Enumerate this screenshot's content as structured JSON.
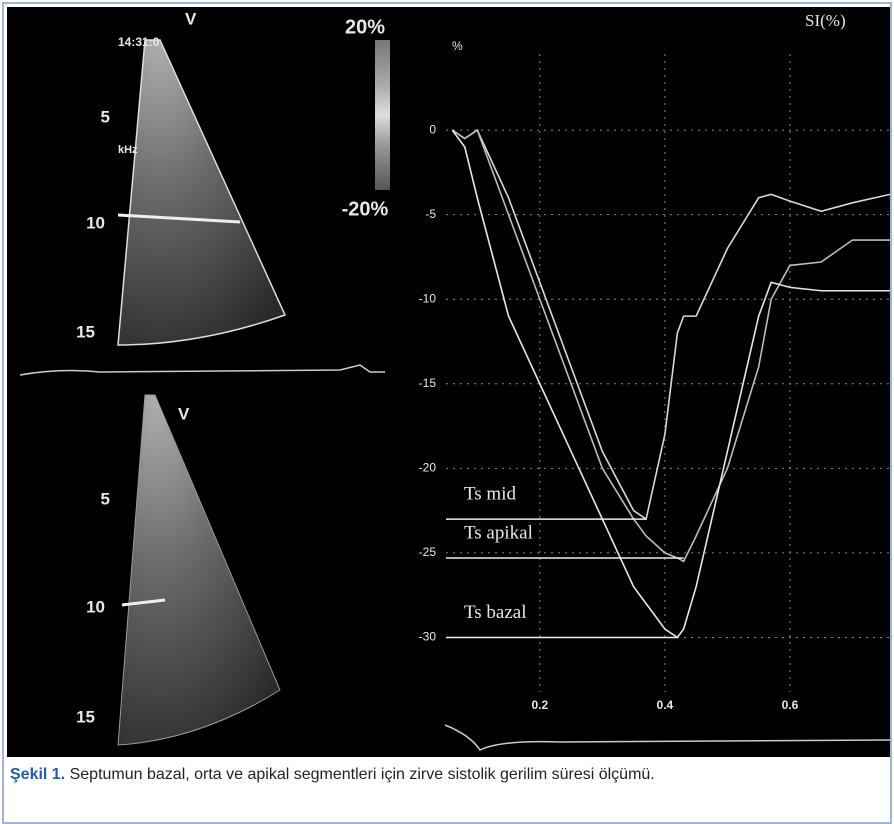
{
  "image": {
    "top_panel": {
      "time": "14:31:0",
      "unit": "kHz",
      "view": "V",
      "depth_labels": [
        "5",
        "10",
        "15"
      ],
      "scale_top": "20%",
      "scale_bottom": "-20%"
    },
    "bottom_panel": {
      "view": "V",
      "depth_labels": [
        "5",
        "10",
        "15"
      ]
    }
  },
  "chart_data": {
    "type": "line",
    "title": "SI(%)",
    "y_label": "%",
    "x": [
      0.06,
      0.08,
      0.1,
      0.15,
      0.2,
      0.25,
      0.3,
      0.35,
      0.37,
      0.4,
      0.42,
      0.43,
      0.45,
      0.5,
      0.55,
      0.57,
      0.6,
      0.65,
      0.7,
      0.76
    ],
    "series": [
      {
        "color": "#d8d8d8",
        "values": [
          0,
          -0.5,
          0,
          -4,
          -9,
          -14,
          -19,
          -22.5,
          -23,
          -18,
          -12,
          -11,
          -11,
          -7,
          -4,
          -3.8,
          -4.2,
          -4.8,
          -4.3,
          -3.8
        ]
      },
      {
        "color": "#bcbcbc",
        "values": [
          0,
          -0.5,
          0,
          -5,
          -10,
          -15,
          -20,
          -23,
          -24,
          -25,
          -25.3,
          -25.5,
          -24,
          -20,
          -14,
          -10,
          -8,
          -7.8,
          -6.5,
          -6.5
        ]
      },
      {
        "color": "#e6e6e6",
        "values": [
          0,
          -1,
          -4,
          -11,
          -15,
          -19,
          -23,
          -27,
          -28,
          -29.5,
          -30,
          -29.5,
          -27,
          -19,
          -11,
          -9,
          -9.3,
          -9.5,
          -9.5,
          -9.5
        ]
      }
    ],
    "annotations": [
      {
        "text": "Ts mid",
        "x": 0.37,
        "y": -23
      },
      {
        "text": "Ts apikal",
        "x": 0.43,
        "y": -25.3
      },
      {
        "text": "Ts bazal",
        "x": 0.42,
        "y": -30
      }
    ],
    "xlim": [
      0.05,
      0.76
    ],
    "ylim": [
      -35,
      4.5
    ],
    "xticks": [
      0.2,
      0.4,
      0.6
    ],
    "yticks": [
      0,
      -5,
      -10,
      -15,
      -20,
      -25,
      -30
    ],
    "grid": true
  },
  "caption": {
    "label": "Şekil 1.",
    "text": "Septumun bazal, orta ve apikal segmentleri için zirve sistolik gerilim süresi ölçümü."
  }
}
